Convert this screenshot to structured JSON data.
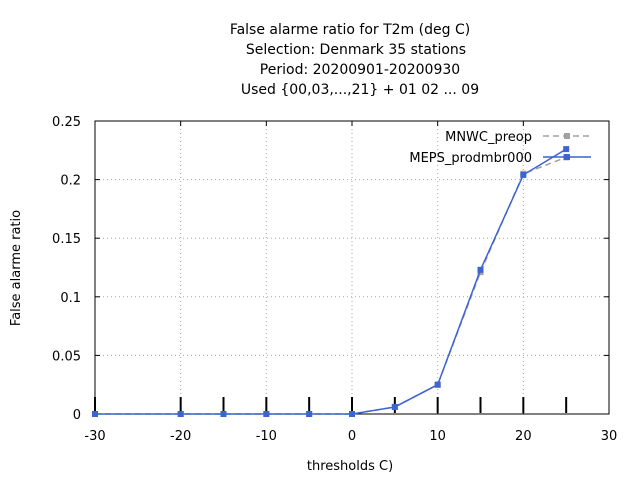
{
  "chart_data": {
    "type": "line",
    "title_lines": [
      "False alarme ratio  for T2m (deg C)",
      "Selection: Denmark     35 stations",
      "Period: 20200901-20200930",
      "Used {00,03,...,21} + 01 02 ... 09"
    ],
    "xlabel": "thresholds C)",
    "ylabel": "False alarme ratio",
    "xlim": [
      -30,
      30
    ],
    "ylim": [
      0,
      0.25
    ],
    "x_ticks": [
      "-30",
      "-20",
      "-10",
      "0",
      "10",
      "20",
      "30"
    ],
    "y_ticks": [
      "0",
      "0.05",
      "0.1",
      "0.15",
      "0.2",
      "0.25"
    ],
    "grid": true,
    "legend_position": "top-right",
    "x": [
      -30,
      -20,
      -15,
      -10,
      -5,
      0,
      5,
      10,
      15,
      20,
      25
    ],
    "series": [
      {
        "name": "MNWC_preop",
        "color": "#a0a0a0",
        "style": "dashed",
        "values": [
          0,
          0,
          0,
          0,
          0,
          0,
          0.006,
          0.025,
          0.121,
          0.205,
          0.219
        ]
      },
      {
        "name": "MEPS_prodmbr000",
        "color": "#3c64d2",
        "style": "solid",
        "values": [
          0,
          0,
          0,
          0,
          0,
          0,
          0.006,
          0.025,
          0.123,
          0.204,
          0.226
        ]
      }
    ]
  }
}
